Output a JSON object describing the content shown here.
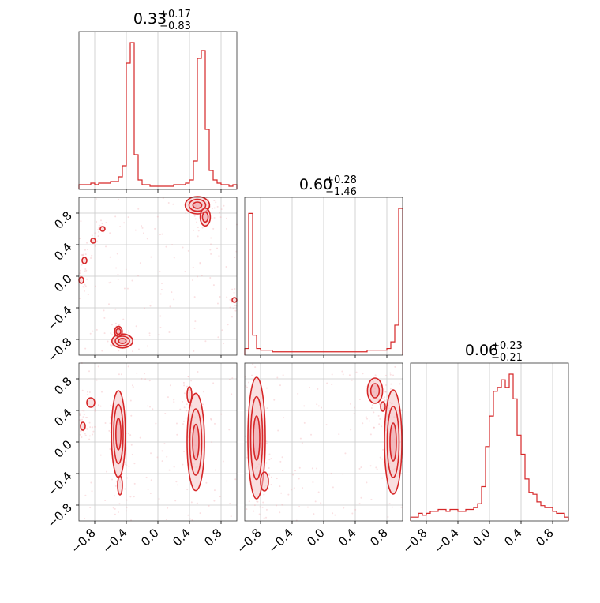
{
  "chart_data": {
    "type": "corner",
    "color": "#d62728",
    "fill_color": "#f4c5c7",
    "grid": true,
    "tick_values": [
      -0.8,
      -0.4,
      0.0,
      0.4,
      0.8
    ],
    "tick_labels": [
      "−0.8",
      "−0.4",
      "0.0",
      "0.4",
      "0.8"
    ],
    "range": [
      -1.0,
      1.0
    ],
    "titles": [
      {
        "median": "0.33",
        "plus": "+0.17",
        "minus": "−0.83"
      },
      {
        "median": "0.60",
        "plus": "+0.28",
        "minus": "−1.46"
      },
      {
        "median": "0.06",
        "plus": "+0.23",
        "minus": "−0.21"
      }
    ],
    "histograms": [
      {
        "bins": 40,
        "counts": [
          3,
          3,
          3,
          4,
          3,
          4,
          4,
          4,
          5,
          5,
          8,
          15,
          80,
          93,
          22,
          6,
          3,
          3,
          2,
          2,
          2,
          2,
          2,
          2,
          3,
          3,
          3,
          4,
          6,
          18,
          83,
          88,
          38,
          12,
          6,
          4,
          3,
          3,
          2,
          3
        ]
      },
      {
        "bins": 40,
        "counts": [
          4,
          85,
          12,
          4,
          3,
          3,
          3,
          2,
          2,
          2,
          2,
          2,
          2,
          2,
          2,
          2,
          2,
          2,
          2,
          2,
          2,
          2,
          2,
          2,
          2,
          2,
          2,
          2,
          2,
          2,
          2,
          3,
          3,
          3,
          3,
          3,
          4,
          8,
          18,
          88
        ]
      },
      {
        "bins": 40,
        "counts": [
          2,
          2,
          4,
          3,
          4,
          5,
          5,
          6,
          6,
          5,
          6,
          6,
          5,
          5,
          6,
          6,
          7,
          9,
          18,
          39,
          55,
          68,
          70,
          74,
          70,
          77,
          64,
          45,
          35,
          22,
          15,
          14,
          10,
          8,
          7,
          7,
          5,
          4,
          4,
          2
        ]
      }
    ],
    "pairs": [
      {
        "x_param": 0,
        "y_param": 1,
        "modes": [
          {
            "x": 0.5,
            "y": 0.9,
            "sx": 0.07,
            "sy": 0.05,
            "w": 1.0
          },
          {
            "x": 0.6,
            "y": 0.75,
            "sx": 0.04,
            "sy": 0.07,
            "w": 0.5
          },
          {
            "x": -0.45,
            "y": -0.82,
            "sx": 0.06,
            "sy": 0.04,
            "w": 0.7
          },
          {
            "x": -0.5,
            "y": -0.7,
            "sx": 0.03,
            "sy": 0.04,
            "w": 0.4
          },
          {
            "x": -0.82,
            "y": 0.45,
            "sx": 0.03,
            "sy": 0.03,
            "w": 0.35
          },
          {
            "x": -0.93,
            "y": 0.2,
            "sx": 0.02,
            "sy": 0.04,
            "w": 0.3
          },
          {
            "x": -0.97,
            "y": -0.05,
            "sx": 0.02,
            "sy": 0.04,
            "w": 0.3
          },
          {
            "x": -0.7,
            "y": 0.6,
            "sx": 0.02,
            "sy": 0.02,
            "w": 0.25
          },
          {
            "x": 0.97,
            "y": -0.3,
            "sx": 0.02,
            "sy": 0.03,
            "w": 0.25
          }
        ]
      },
      {
        "x_param": 0,
        "y_param": 2,
        "modes": [
          {
            "x": -0.5,
            "y": 0.1,
            "sx": 0.04,
            "sy": 0.25,
            "w": 1.0
          },
          {
            "x": 0.48,
            "y": 0.0,
            "sx": 0.05,
            "sy": 0.28,
            "w": 1.0
          },
          {
            "x": -0.48,
            "y": -0.55,
            "sx": 0.03,
            "sy": 0.12,
            "w": 0.35
          },
          {
            "x": -0.85,
            "y": 0.5,
            "sx": 0.05,
            "sy": 0.06,
            "w": 0.35
          },
          {
            "x": 0.4,
            "y": 0.6,
            "sx": 0.02,
            "sy": 0.1,
            "w": 0.3
          },
          {
            "x": -0.95,
            "y": 0.2,
            "sx": 0.02,
            "sy": 0.05,
            "w": 0.25
          }
        ]
      },
      {
        "x_param": 1,
        "y_param": 2,
        "modes": [
          {
            "x": -0.85,
            "y": 0.05,
            "sx": 0.05,
            "sy": 0.35,
            "w": 1.0
          },
          {
            "x": 0.88,
            "y": 0.0,
            "sx": 0.05,
            "sy": 0.3,
            "w": 1.0
          },
          {
            "x": 0.65,
            "y": 0.65,
            "sx": 0.06,
            "sy": 0.1,
            "w": 0.45
          },
          {
            "x": -0.75,
            "y": -0.5,
            "sx": 0.05,
            "sy": 0.12,
            "w": 0.35
          },
          {
            "x": 0.75,
            "y": 0.45,
            "sx": 0.03,
            "sy": 0.06,
            "w": 0.3
          }
        ]
      }
    ]
  }
}
